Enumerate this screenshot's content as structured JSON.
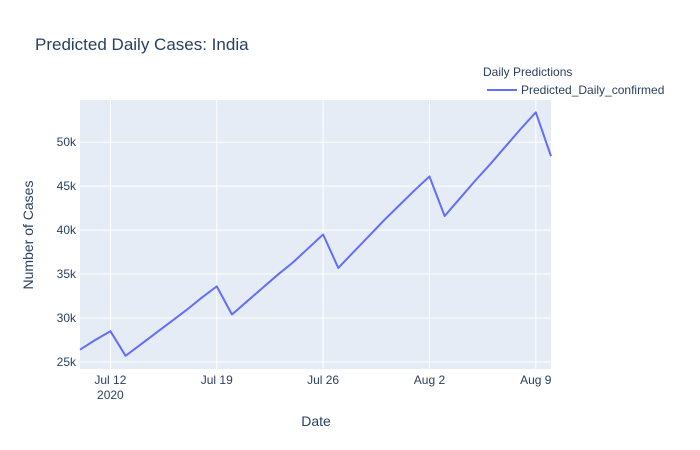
{
  "chart_data": {
    "type": "line",
    "title": "Predicted Daily Cases: India",
    "x_label": "Date",
    "y_label": "Number of Cases",
    "legend_title": "Daily Predictions",
    "legend_position": "top-right",
    "grid": true,
    "x": [
      "2020-07-10",
      "2020-07-11",
      "2020-07-12",
      "2020-07-13",
      "2020-07-14",
      "2020-07-15",
      "2020-07-16",
      "2020-07-17",
      "2020-07-18",
      "2020-07-19",
      "2020-07-20",
      "2020-07-21",
      "2020-07-22",
      "2020-07-23",
      "2020-07-24",
      "2020-07-25",
      "2020-07-26",
      "2020-07-27",
      "2020-07-28",
      "2020-07-29",
      "2020-07-30",
      "2020-07-31",
      "2020-08-01",
      "2020-08-02",
      "2020-08-03",
      "2020-08-04",
      "2020-08-05",
      "2020-08-06",
      "2020-08-07",
      "2020-08-08",
      "2020-08-09",
      "2020-08-10"
    ],
    "series": [
      {
        "name": "Predicted_Daily_confirmed",
        "color": "#636efa",
        "values": [
          26400,
          27500,
          28500,
          25700,
          27000,
          28300,
          29600,
          30900,
          32300,
          33600,
          30400,
          31900,
          33400,
          34900,
          36300,
          37900,
          39500,
          35700,
          37500,
          39300,
          41100,
          42800,
          44500,
          46100,
          41600,
          43600,
          45600,
          47500,
          49500,
          51500,
          53400,
          48400
        ]
      }
    ],
    "xlim": [
      "2020-07-10",
      "2020-08-10"
    ],
    "xticks": [
      {
        "value": "2020-07-12",
        "label": "Jul 12"
      },
      {
        "value": "2020-07-19",
        "label": "Jul 19"
      },
      {
        "value": "2020-07-26",
        "label": "Jul 26"
      },
      {
        "value": "2020-08-02",
        "label": "Aug 2"
      },
      {
        "value": "2020-08-09",
        "label": "Aug 9"
      }
    ],
    "xtick_year": "2020",
    "ylim": [
      24200,
      54800
    ],
    "yticks": [
      {
        "value": 25000,
        "label": "25k"
      },
      {
        "value": 30000,
        "label": "30k"
      },
      {
        "value": 35000,
        "label": "35k"
      },
      {
        "value": 40000,
        "label": "40k"
      },
      {
        "value": 45000,
        "label": "45k"
      },
      {
        "value": 50000,
        "label": "50k"
      }
    ]
  }
}
